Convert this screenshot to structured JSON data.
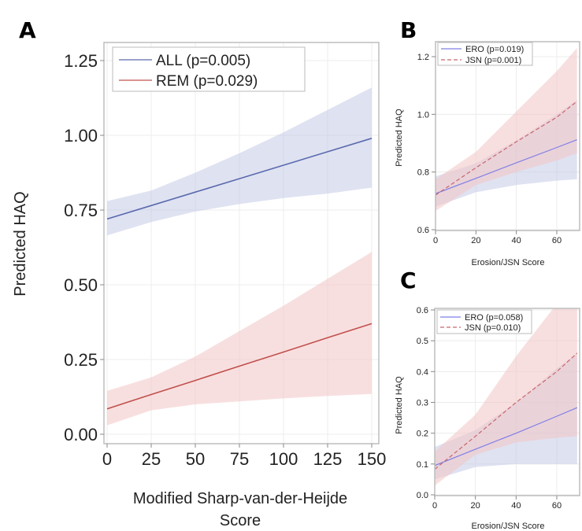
{
  "chart_data": [
    {
      "panel": "A",
      "type": "line",
      "xlabel": "Modified Sharp-van-der-Heijde Score",
      "xlabel_lines": [
        "Modified Sharp-van-der-Heijde",
        "Score"
      ],
      "ylabel": "Predicted HAQ",
      "xlim": [
        0,
        150
      ],
      "ylim": [
        0,
        1.25
      ],
      "xticks": [
        "0",
        "25",
        "50",
        "75",
        "100",
        "125",
        "150"
      ],
      "xtick_values": [
        0,
        25,
        50,
        75,
        100,
        125,
        150
      ],
      "yticks": [
        "0.00",
        "0.25",
        "0.50",
        "0.75",
        "1.00",
        "1.25"
      ],
      "ytick_values": [
        0,
        0.25,
        0.5,
        0.75,
        1.0,
        1.25
      ],
      "grid": true,
      "legend_position": "top-left",
      "x": [
        0,
        25,
        50,
        75,
        100,
        125,
        150
      ],
      "series": [
        {
          "name": "ALL (p=0.005)",
          "color": "#5a6aae",
          "band_color": "#c5cbe6",
          "dashed": false,
          "values": [
            0.72,
            0.765,
            0.81,
            0.855,
            0.9,
            0.945,
            0.99
          ],
          "lower": [
            0.665,
            0.71,
            0.745,
            0.77,
            0.79,
            0.805,
            0.825
          ],
          "upper": [
            0.78,
            0.815,
            0.875,
            0.94,
            1.01,
            1.085,
            1.16
          ]
        },
        {
          "name": "REM (p=0.029)",
          "color": "#c0504d",
          "band_color": "#f3c4c4",
          "dashed": false,
          "values": [
            0.085,
            0.133,
            0.18,
            0.228,
            0.275,
            0.323,
            0.37
          ],
          "lower": [
            0.03,
            0.08,
            0.1,
            0.11,
            0.12,
            0.128,
            0.135
          ],
          "upper": [
            0.145,
            0.19,
            0.26,
            0.345,
            0.43,
            0.52,
            0.61
          ]
        }
      ]
    },
    {
      "panel": "B",
      "type": "line",
      "xlabel": "Erosion/JSN Score",
      "ylabel": "Predicted HAQ",
      "xlim": [
        0,
        70
      ],
      "ylim": [
        0.6,
        1.25
      ],
      "xticks": [
        "0",
        "20",
        "40",
        "60"
      ],
      "xtick_values": [
        0,
        20,
        40,
        60
      ],
      "yticks": [
        "0.6",
        "0.8",
        "1.0",
        "1.2"
      ],
      "ytick_values": [
        0.6,
        0.8,
        1.0,
        1.2
      ],
      "grid": true,
      "legend_position": "top-left",
      "x": [
        0,
        20,
        40,
        60,
        70
      ],
      "series": [
        {
          "name": "ERO (p=0.019)",
          "color": "#7f7fe6",
          "band_color": "#c5cbe6",
          "dashed": false,
          "values": [
            0.725,
            0.778,
            0.832,
            0.885,
            0.912
          ],
          "lower": [
            0.68,
            0.73,
            0.755,
            0.77,
            0.775
          ],
          "upper": [
            0.785,
            0.83,
            0.91,
            1.0,
            1.05
          ]
        },
        {
          "name": "JSN (p=0.001)",
          "color": "#c8676a",
          "band_color": "#f3c4c4",
          "dashed": true,
          "values": [
            0.72,
            0.815,
            0.905,
            0.99,
            1.045
          ],
          "lower": [
            0.665,
            0.755,
            0.8,
            0.84,
            0.865
          ],
          "upper": [
            0.775,
            0.87,
            1.01,
            1.15,
            1.23
          ]
        }
      ]
    },
    {
      "panel": "C",
      "type": "line",
      "xlabel": "Erosion/JSN Score",
      "ylabel": "Predicted HAQ",
      "xlim": [
        0,
        70
      ],
      "ylim": [
        0,
        0.6
      ],
      "xticks": [
        "0",
        "20",
        "40",
        "60"
      ],
      "xtick_values": [
        0,
        20,
        40,
        60
      ],
      "yticks": [
        "0.0",
        "0.1",
        "0.2",
        "0.3",
        "0.4",
        "0.5",
        "0.6"
      ],
      "ytick_values": [
        0,
        0.1,
        0.2,
        0.3,
        0.4,
        0.5,
        0.6
      ],
      "grid": true,
      "legend_position": "top-left",
      "x": [
        0,
        20,
        40,
        60,
        70
      ],
      "series": [
        {
          "name": "ERO (p=0.058)",
          "color": "#7f7fe6",
          "band_color": "#c5cbe6",
          "dashed": false,
          "values": [
            0.095,
            0.148,
            0.2,
            0.255,
            0.283
          ],
          "lower": [
            0.05,
            0.09,
            0.1,
            0.1,
            0.1
          ],
          "upper": [
            0.155,
            0.21,
            0.3,
            0.41,
            0.46
          ]
        },
        {
          "name": "JSN (p=0.010)",
          "color": "#c8676a",
          "band_color": "#f3c4c4",
          "dashed": true,
          "values": [
            0.083,
            0.19,
            0.3,
            0.4,
            0.46
          ],
          "lower": [
            0.03,
            0.13,
            0.17,
            0.185,
            0.19
          ],
          "upper": [
            0.14,
            0.26,
            0.45,
            0.62,
            0.72
          ]
        }
      ]
    }
  ]
}
